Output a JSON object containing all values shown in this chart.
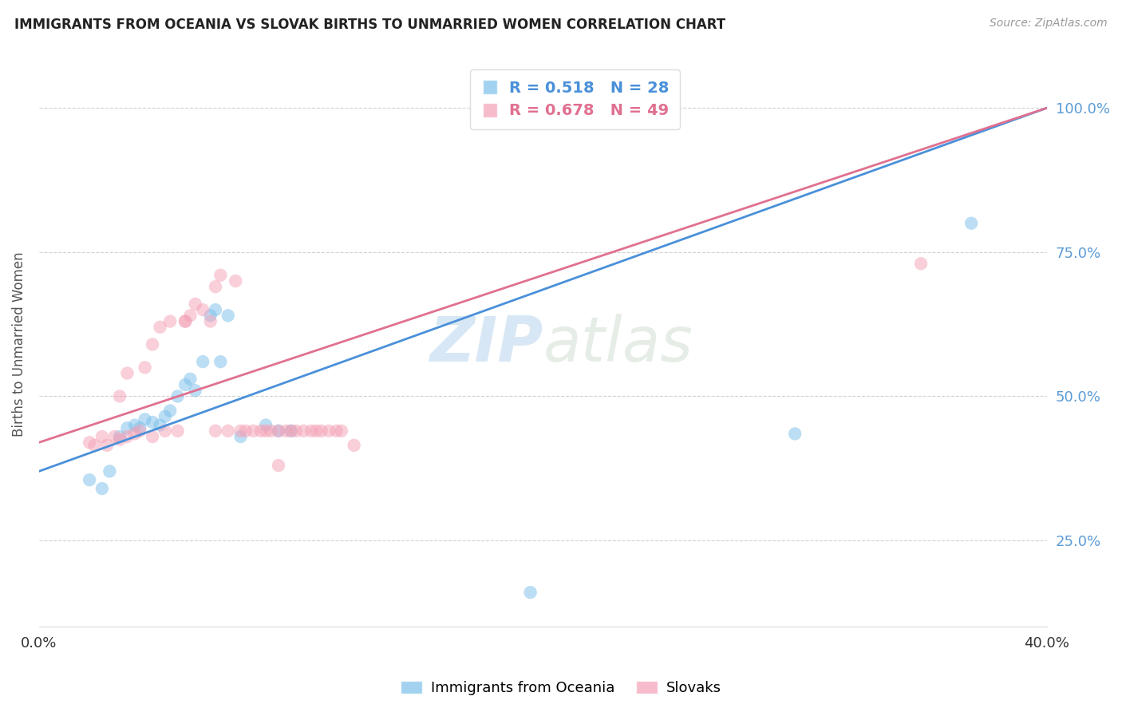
{
  "title": "IMMIGRANTS FROM OCEANIA VS SLOVAK BIRTHS TO UNMARRIED WOMEN CORRELATION CHART",
  "source": "Source: ZipAtlas.com",
  "ylabel": "Births to Unmarried Women",
  "legend1_label": "Immigrants from Oceania",
  "legend2_label": "Slovaks",
  "R1": 0.518,
  "N1": 28,
  "R2": 0.678,
  "N2": 49,
  "color_blue": "#7bbfea",
  "color_pink": "#f4a0b5",
  "color_blue_line": "#4a90d9",
  "color_pink_line": "#e07090",
  "color_yaxis_label": "#5b9bd5",
  "background_color": "#ffffff",
  "grid_color": "#cccccc",
  "blue_points_x": [
    0.02,
    0.025,
    0.028,
    0.032,
    0.035,
    0.038,
    0.04,
    0.042,
    0.045,
    0.048,
    0.05,
    0.052,
    0.055,
    0.058,
    0.06,
    0.062,
    0.065,
    0.068,
    0.07,
    0.072,
    0.075,
    0.08,
    0.09,
    0.095,
    0.1,
    0.195,
    0.3,
    0.37
  ],
  "blue_points_y": [
    0.355,
    0.34,
    0.37,
    0.43,
    0.445,
    0.45,
    0.445,
    0.46,
    0.455,
    0.45,
    0.465,
    0.475,
    0.5,
    0.52,
    0.53,
    0.51,
    0.56,
    0.64,
    0.65,
    0.56,
    0.64,
    0.43,
    0.45,
    0.44,
    0.44,
    0.16,
    0.435,
    0.8
  ],
  "pink_points_x": [
    0.02,
    0.022,
    0.025,
    0.027,
    0.03,
    0.032,
    0.032,
    0.035,
    0.035,
    0.038,
    0.04,
    0.042,
    0.045,
    0.045,
    0.048,
    0.05,
    0.052,
    0.055,
    0.058,
    0.058,
    0.06,
    0.062,
    0.065,
    0.068,
    0.07,
    0.07,
    0.072,
    0.075,
    0.078,
    0.08,
    0.082,
    0.085,
    0.088,
    0.09,
    0.092,
    0.095,
    0.095,
    0.098,
    0.1,
    0.102,
    0.105,
    0.108,
    0.11,
    0.112,
    0.115,
    0.118,
    0.12,
    0.125,
    0.35
  ],
  "pink_points_y": [
    0.42,
    0.415,
    0.43,
    0.415,
    0.43,
    0.425,
    0.5,
    0.43,
    0.54,
    0.435,
    0.44,
    0.55,
    0.43,
    0.59,
    0.62,
    0.44,
    0.63,
    0.44,
    0.63,
    0.63,
    0.64,
    0.66,
    0.65,
    0.63,
    0.44,
    0.69,
    0.71,
    0.44,
    0.7,
    0.44,
    0.44,
    0.44,
    0.44,
    0.44,
    0.44,
    0.44,
    0.38,
    0.44,
    0.44,
    0.44,
    0.44,
    0.44,
    0.44,
    0.44,
    0.44,
    0.44,
    0.44,
    0.415,
    0.73
  ],
  "blue_line": [
    [
      0.0,
      0.4
    ],
    [
      0.37,
      1.0
    ]
  ],
  "pink_line": [
    [
      0.0,
      0.4
    ],
    [
      0.42,
      1.0
    ]
  ],
  "xlim": [
    0.0,
    0.4
  ],
  "ylim": [
    0.1,
    1.08
  ],
  "yticks": [
    0.25,
    0.5,
    0.75,
    1.0
  ],
  "xticks": [
    0.0,
    0.4
  ],
  "watermark_zip": "ZIP",
  "watermark_atlas": "atlas"
}
